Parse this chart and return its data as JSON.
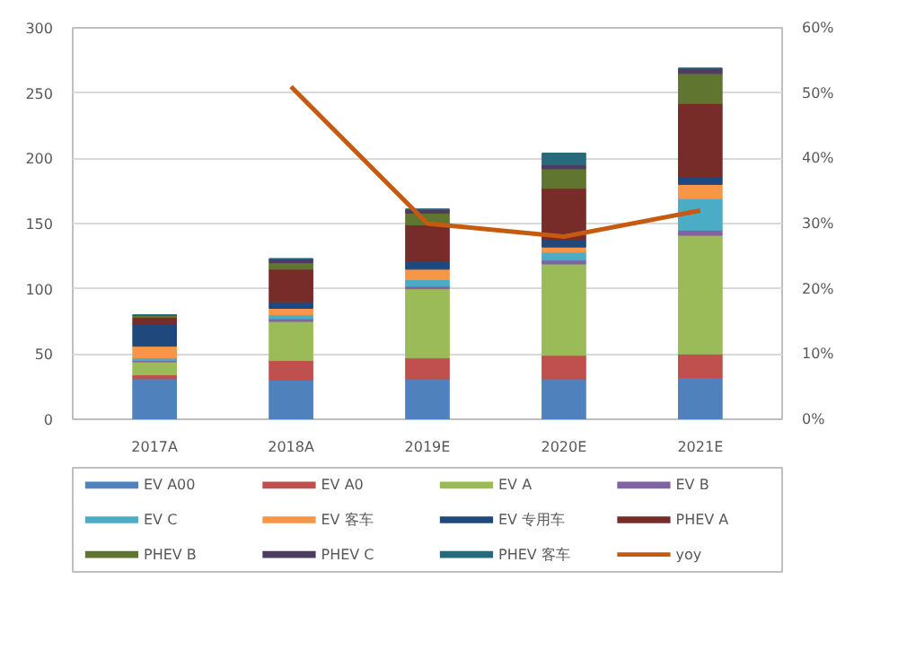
{
  "chart_data": {
    "type": "bar",
    "stacked": true,
    "categories": [
      "2017A",
      "2018A",
      "2019E",
      "2020E",
      "2021E"
    ],
    "series": [
      {
        "name": "EV A00",
        "color": "#4f81bd",
        "values": [
          31,
          30,
          31,
          31,
          32
        ]
      },
      {
        "name": "EV A0",
        "color": "#c0504d",
        "values": [
          3,
          15,
          16,
          18,
          18
        ]
      },
      {
        "name": "EV A",
        "color": "#9bbb59",
        "values": [
          10,
          30,
          53,
          70,
          91
        ]
      },
      {
        "name": "EV B",
        "color": "#8064a2",
        "values": [
          1,
          2,
          2,
          3,
          4
        ]
      },
      {
        "name": "EV C",
        "color": "#4bacc6",
        "values": [
          2,
          3,
          5,
          6,
          24
        ]
      },
      {
        "name": "EV 客车",
        "color": "#f79646",
        "values": [
          9,
          5,
          8,
          4,
          11
        ]
      },
      {
        "name": "EV 专用车",
        "color": "#1f497d",
        "values": [
          17,
          5,
          6,
          6,
          6
        ]
      },
      {
        "name": "PHEV A",
        "color": "#772c2a",
        "values": [
          5,
          25,
          28,
          39,
          56
        ]
      },
      {
        "name": "PHEV B",
        "color": "#5f7530",
        "values": [
          2,
          5,
          9,
          15,
          23
        ]
      },
      {
        "name": "PHEV C",
        "color": "#4d3b62",
        "values": [
          0,
          3,
          3,
          3,
          4
        ]
      },
      {
        "name": "PHEV 客车",
        "color": "#276a7c",
        "values": [
          0,
          0,
          0,
          9,
          0
        ]
      },
      {
        "name": "yoy",
        "type": "line",
        "axis": "y2",
        "color": "#c55a11",
        "values": [
          null,
          51,
          30,
          28,
          32
        ]
      }
    ],
    "ylim": [
      0,
      300
    ],
    "yticks": [
      0,
      50,
      100,
      150,
      200,
      250,
      300
    ],
    "y2lim": [
      0,
      60
    ],
    "y2ticks": [
      {
        "value": 0,
        "label": "0%"
      },
      {
        "value": 10,
        "label": "10%"
      },
      {
        "value": 20,
        "label": "20%"
      },
      {
        "value": 30,
        "label": "30%"
      },
      {
        "value": 40,
        "label": "40%"
      },
      {
        "value": 50,
        "label": "50%"
      },
      {
        "value": 60,
        "label": "60%"
      }
    ],
    "grid": "y",
    "legend": "bottom"
  }
}
